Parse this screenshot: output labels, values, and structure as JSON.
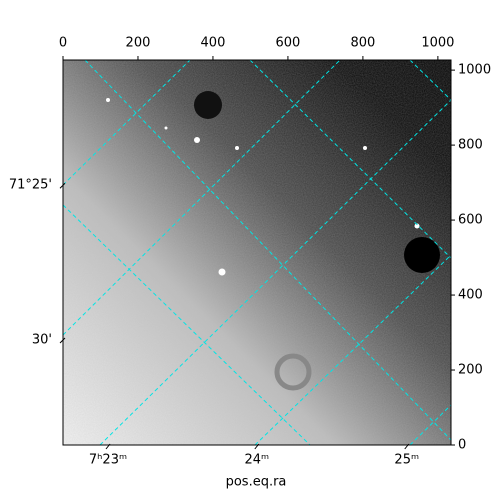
{
  "chart_data": {
    "type": "image",
    "xlabel": "pos.eq.ra",
    "xlim": [
      0,
      1035
    ],
    "ylim": [
      0,
      1027
    ],
    "xticks": [
      0,
      200,
      400,
      600,
      800,
      1000
    ],
    "yticks": [
      0,
      200,
      400,
      600,
      800,
      1000
    ],
    "ra_ticks": [
      {
        "value": 120,
        "label": "7ʰ23ᵐ"
      },
      {
        "value": 517,
        "label": "24ᵐ"
      },
      {
        "value": 917,
        "label": "25ᵐ"
      }
    ],
    "dec_ticks": [
      {
        "value": 693,
        "label": "71°25'"
      },
      {
        "value": 280,
        "label": "30'"
      }
    ]
  }
}
